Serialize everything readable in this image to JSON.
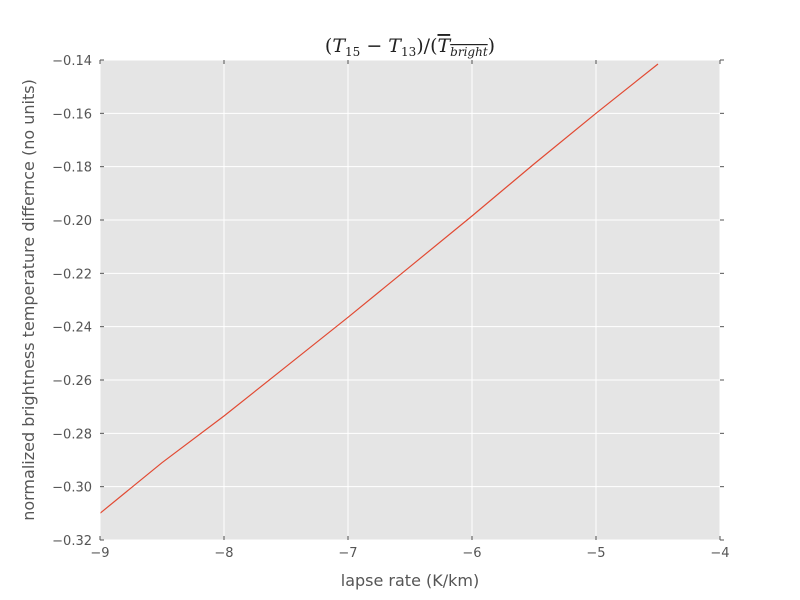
{
  "chart_data": {
    "type": "line",
    "title": "(T15 − T13)/(T̄bright)",
    "title_parts": {
      "open": "(",
      "t1": "T",
      "t1_sub": "15",
      "minus": " − ",
      "t2": "T",
      "t2_sub": "13",
      "mid": ")/(",
      "t3": "T",
      "t3_sub": "bright",
      "close": ")"
    },
    "xlabel": "lapse rate (K/km)",
    "ylabel": "normalized brightness temperature differnce (no units)",
    "xlim": [
      -9,
      -4
    ],
    "ylim": [
      -0.32,
      -0.14
    ],
    "xticks": [
      -9,
      -8,
      -7,
      -6,
      -5,
      -4
    ],
    "yticks": [
      -0.32,
      -0.3,
      -0.28,
      -0.26,
      -0.24,
      -0.22,
      -0.2,
      -0.18,
      -0.16,
      -0.14
    ],
    "xtick_labels": [
      "−9",
      "−8",
      "−7",
      "−6",
      "−5",
      "−4"
    ],
    "ytick_labels": [
      "−0.32",
      "−0.30",
      "−0.28",
      "−0.26",
      "−0.24",
      "−0.22",
      "−0.20",
      "−0.18",
      "−0.16",
      "−0.14"
    ],
    "grid": true,
    "background_color": "#e5e5e5",
    "grid_color": "#ffffff",
    "series": [
      {
        "color": "#e24a33",
        "x": [
          -9.0,
          -8.5,
          -8.0,
          -7.5,
          -7.0,
          -6.5,
          -6.0,
          -5.5,
          -5.0,
          -4.5
        ],
        "y": [
          -0.31,
          -0.291,
          -0.2735,
          -0.255,
          -0.2365,
          -0.2175,
          -0.1985,
          -0.179,
          -0.16,
          -0.1415
        ]
      }
    ]
  }
}
